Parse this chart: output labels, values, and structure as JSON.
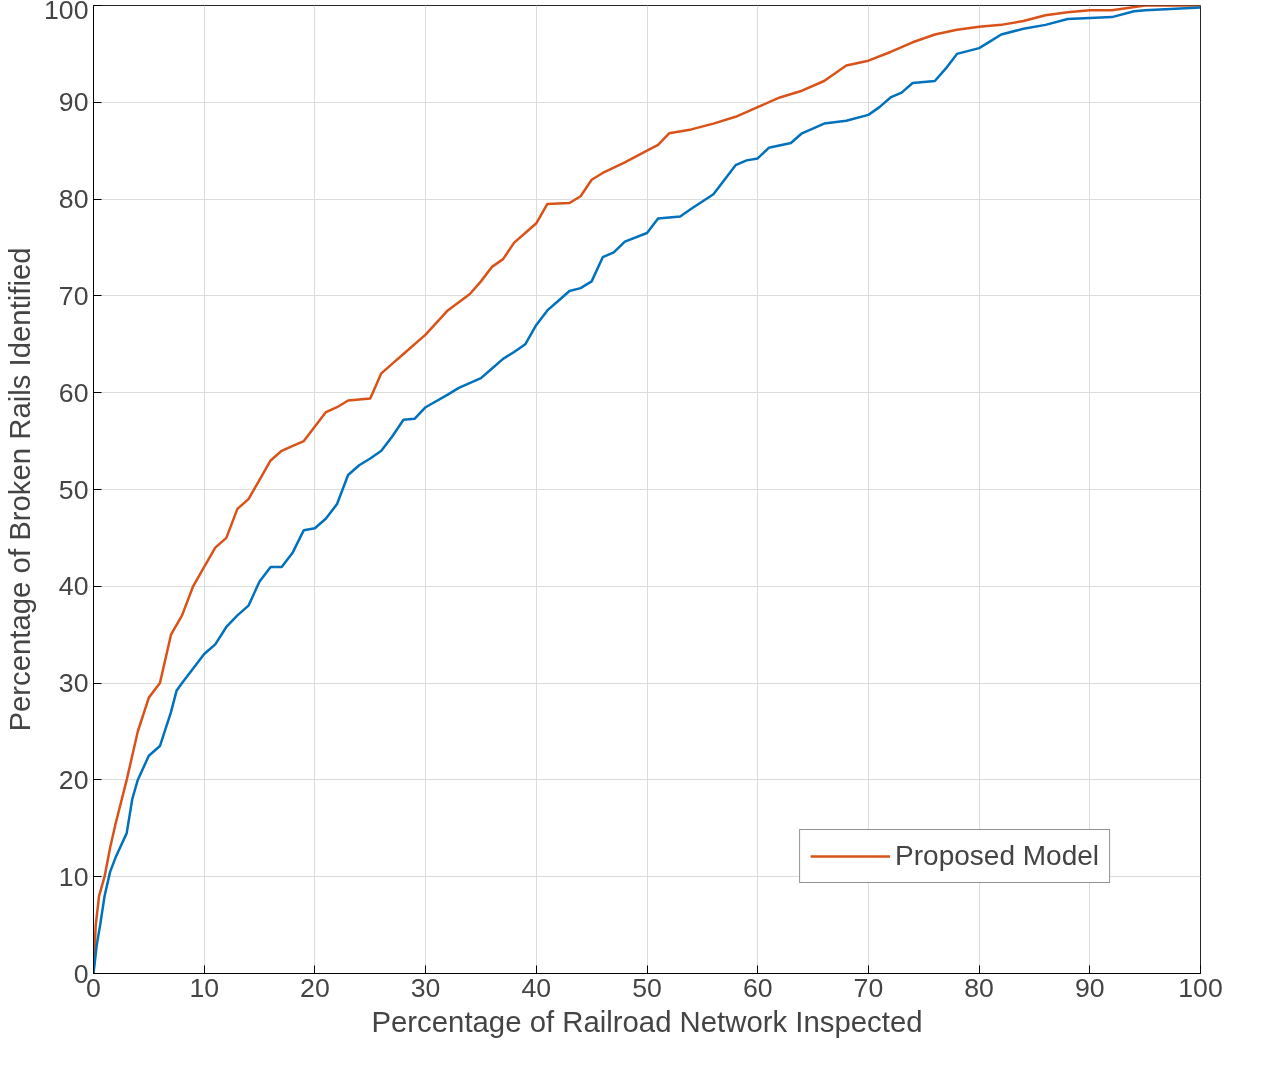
{
  "chart_data": {
    "type": "line",
    "xlabel": "Percentage of Railroad Network Inspected",
    "ylabel": "Percentage of Broken Rails Identified",
    "xlim": [
      0,
      100
    ],
    "ylim": [
      0,
      100
    ],
    "xticks": [
      0,
      10,
      20,
      30,
      40,
      50,
      60,
      70,
      80,
      90,
      100
    ],
    "yticks": [
      0,
      10,
      20,
      30,
      40,
      50,
      60,
      70,
      80,
      90,
      100
    ],
    "grid": true,
    "legend": "bottom right",
    "line_style": "solid",
    "series": [
      {
        "name": "Proposed Model",
        "color": "#d95319",
        "x": [
          0,
          0.2,
          0.5,
          1,
          1.5,
          2,
          3,
          4,
          5,
          6,
          7,
          8,
          9,
          10,
          11,
          12,
          13,
          14,
          15,
          16,
          17,
          18,
          19,
          20,
          21,
          22,
          23,
          25,
          26,
          27,
          28,
          30,
          32,
          34,
          35,
          36,
          37,
          38,
          39,
          40,
          41,
          43,
          44,
          45,
          46,
          48,
          50,
          51,
          52,
          54,
          56,
          58,
          60,
          62,
          64,
          66,
          68,
          70,
          72,
          74,
          76,
          78,
          80,
          82,
          84,
          86,
          88,
          90,
          92,
          95,
          100
        ],
        "values": [
          0,
          5,
          8,
          10,
          13,
          15.5,
          20,
          25,
          28.5,
          30,
          35,
          37,
          40,
          42,
          44,
          45,
          48,
          49,
          51,
          53,
          54,
          54.5,
          55,
          56.5,
          58,
          58.5,
          59.2,
          59.4,
          62,
          63,
          64,
          66,
          68.5,
          70.2,
          71.5,
          73,
          73.8,
          75.5,
          76.5,
          77.5,
          79.5,
          79.6,
          80.3,
          82,
          82.7,
          83.8,
          85,
          85.6,
          86.8,
          87.2,
          87.8,
          88.5,
          89.5,
          90.5,
          91.2,
          92.2,
          93.8,
          94.3,
          95.2,
          96.2,
          97,
          97.5,
          97.8,
          98,
          98.4,
          99,
          99.3,
          99.5,
          99.5,
          100,
          100
        ]
      },
      {
        "color": "#0072bd",
        "x": [
          0,
          0.3,
          0.6,
          1,
          1.5,
          2,
          3,
          3.5,
          4,
          5,
          6,
          7,
          7.5,
          8,
          9,
          10,
          11,
          12,
          13,
          14,
          15,
          16,
          17,
          18,
          19,
          20,
          21,
          22,
          23,
          24,
          25,
          26,
          27,
          28,
          29,
          30,
          32,
          33,
          35,
          36,
          37,
          38,
          39,
          40,
          41,
          42,
          43,
          44,
          45,
          46,
          47,
          48,
          50,
          51,
          53,
          54,
          56,
          58,
          59,
          60,
          61,
          63,
          64,
          66,
          68,
          70,
          71,
          72,
          73,
          74,
          76,
          77,
          78,
          80,
          81,
          82,
          84,
          86,
          88,
          90,
          92,
          94,
          95,
          100
        ],
        "values": [
          0,
          3,
          5,
          8,
          10.5,
          12,
          14.5,
          18,
          20,
          22.5,
          23.5,
          27,
          29.2,
          30,
          31.5,
          33,
          34,
          35.8,
          37,
          38,
          40.5,
          42,
          42,
          43.5,
          45.8,
          46,
          47,
          48.5,
          51.5,
          52.5,
          53.2,
          54,
          55.5,
          57.2,
          57.3,
          58.5,
          59.8,
          60.5,
          61.5,
          62.5,
          63.5,
          64.2,
          65,
          67,
          68.5,
          69.5,
          70.5,
          70.8,
          71.5,
          74,
          74.5,
          75.6,
          76.5,
          78,
          78.2,
          79,
          80.5,
          83.5,
          84,
          84.2,
          85.3,
          85.8,
          86.8,
          87.8,
          88.1,
          88.7,
          89.5,
          90.5,
          91,
          92,
          92.2,
          93.5,
          95,
          95.6,
          96.3,
          97,
          97.6,
          98,
          98.6,
          98.7,
          98.8,
          99.4,
          99.5,
          99.8
        ]
      }
    ]
  }
}
